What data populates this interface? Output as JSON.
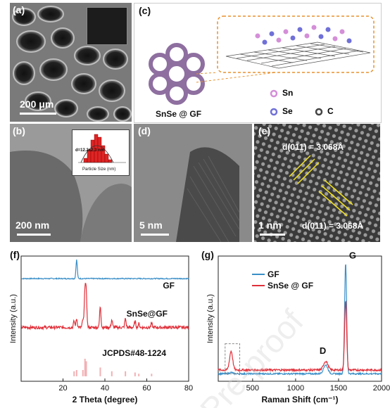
{
  "panels": {
    "a": {
      "label": "(a)",
      "scale": "200 μm"
    },
    "b": {
      "label": "(b)",
      "scale": "200 nm",
      "inset_annotation": "d=12.2±2.3 nm",
      "inset_xlabel": "Particle Size (nm)"
    },
    "c": {
      "label": "(c)",
      "composite_label": "SnSe @ GF",
      "legend": [
        {
          "symbol": "Sn",
          "color": "#d48fd8"
        },
        {
          "symbol": "Se",
          "color": "#7070d8"
        },
        {
          "symbol": "C",
          "color": "#444444"
        }
      ]
    },
    "d": {
      "label": "(d)",
      "scale": "5 nm"
    },
    "e": {
      "label": "(e)",
      "scale": "1 nm",
      "d_spacing_1": "d(011) = 3.068Å",
      "d_spacing_2": "d(011) = 3.068Å"
    },
    "f": {
      "label": "(f)"
    },
    "g": {
      "label": "(g)"
    }
  },
  "watermark": "Pre-proof",
  "chart_data": [
    {
      "type": "line",
      "panel": "f",
      "xlabel": "2 Theta (degree)",
      "ylabel": "Intensity (a.u.)",
      "xlim": [
        0,
        80
      ],
      "xticks": [
        20,
        40,
        60,
        80
      ],
      "series": [
        {
          "name": "GF",
          "color": "#3a8fc8",
          "baseline": 0.82,
          "noise": 0.004,
          "peaks": [
            [
              26.5,
              0.15
            ]
          ]
        },
        {
          "name": "SnSe@GF",
          "color": "#e0303a",
          "baseline": 0.43,
          "noise": 0.012,
          "peaks": [
            [
              25.3,
              0.05
            ],
            [
              26.5,
              0.07
            ],
            [
              29.5,
              0.06
            ],
            [
              30.5,
              0.3
            ],
            [
              31.1,
              0.25
            ],
            [
              37.8,
              0.17
            ],
            [
              43.3,
              0.06
            ],
            [
              49.8,
              0.07
            ],
            [
              54.4,
              0.05
            ],
            [
              56.2,
              0.03
            ],
            [
              62.3,
              0.03
            ]
          ]
        },
        {
          "name": "JCPDS#48-1224",
          "color": "#f2b0b3",
          "type": "sticks",
          "baseline": 0.04,
          "sticks": [
            [
              25.3,
              0.04
            ],
            [
              26.5,
              0.05
            ],
            [
              29.5,
              0.05
            ],
            [
              30.5,
              0.14
            ],
            [
              31.1,
              0.12
            ],
            [
              37.8,
              0.07
            ],
            [
              43.3,
              0.04
            ],
            [
              49.8,
              0.04
            ],
            [
              54.4,
              0.03
            ],
            [
              56.2,
              0.02
            ],
            [
              62.3,
              0.02
            ]
          ]
        }
      ]
    },
    {
      "type": "line",
      "panel": "g",
      "xlabel": "Raman Shift (cm⁻¹)",
      "ylabel": "Intensity (a.u.)",
      "xlim": [
        100,
        2000
      ],
      "xticks": [
        500,
        1000,
        1500,
        2000
      ],
      "annotations": [
        "D",
        "G"
      ],
      "series": [
        {
          "name": "GF",
          "color": "#3a8fc8",
          "baseline": 0.06,
          "noise": 0.006,
          "peaks": [
            [
              1350,
              0.07,
              25
            ],
            [
              1582,
              0.88,
              12
            ],
            [
              250,
              0.01,
              20
            ]
          ]
        },
        {
          "name": "SnSe @ GF",
          "color": "#e0303a",
          "baseline": 0.09,
          "noise": 0.008,
          "peaks": [
            [
              250,
              0.15,
              18
            ],
            [
              1350,
              0.07,
              25
            ],
            [
              1582,
              0.55,
              12
            ]
          ]
        }
      ]
    }
  ]
}
